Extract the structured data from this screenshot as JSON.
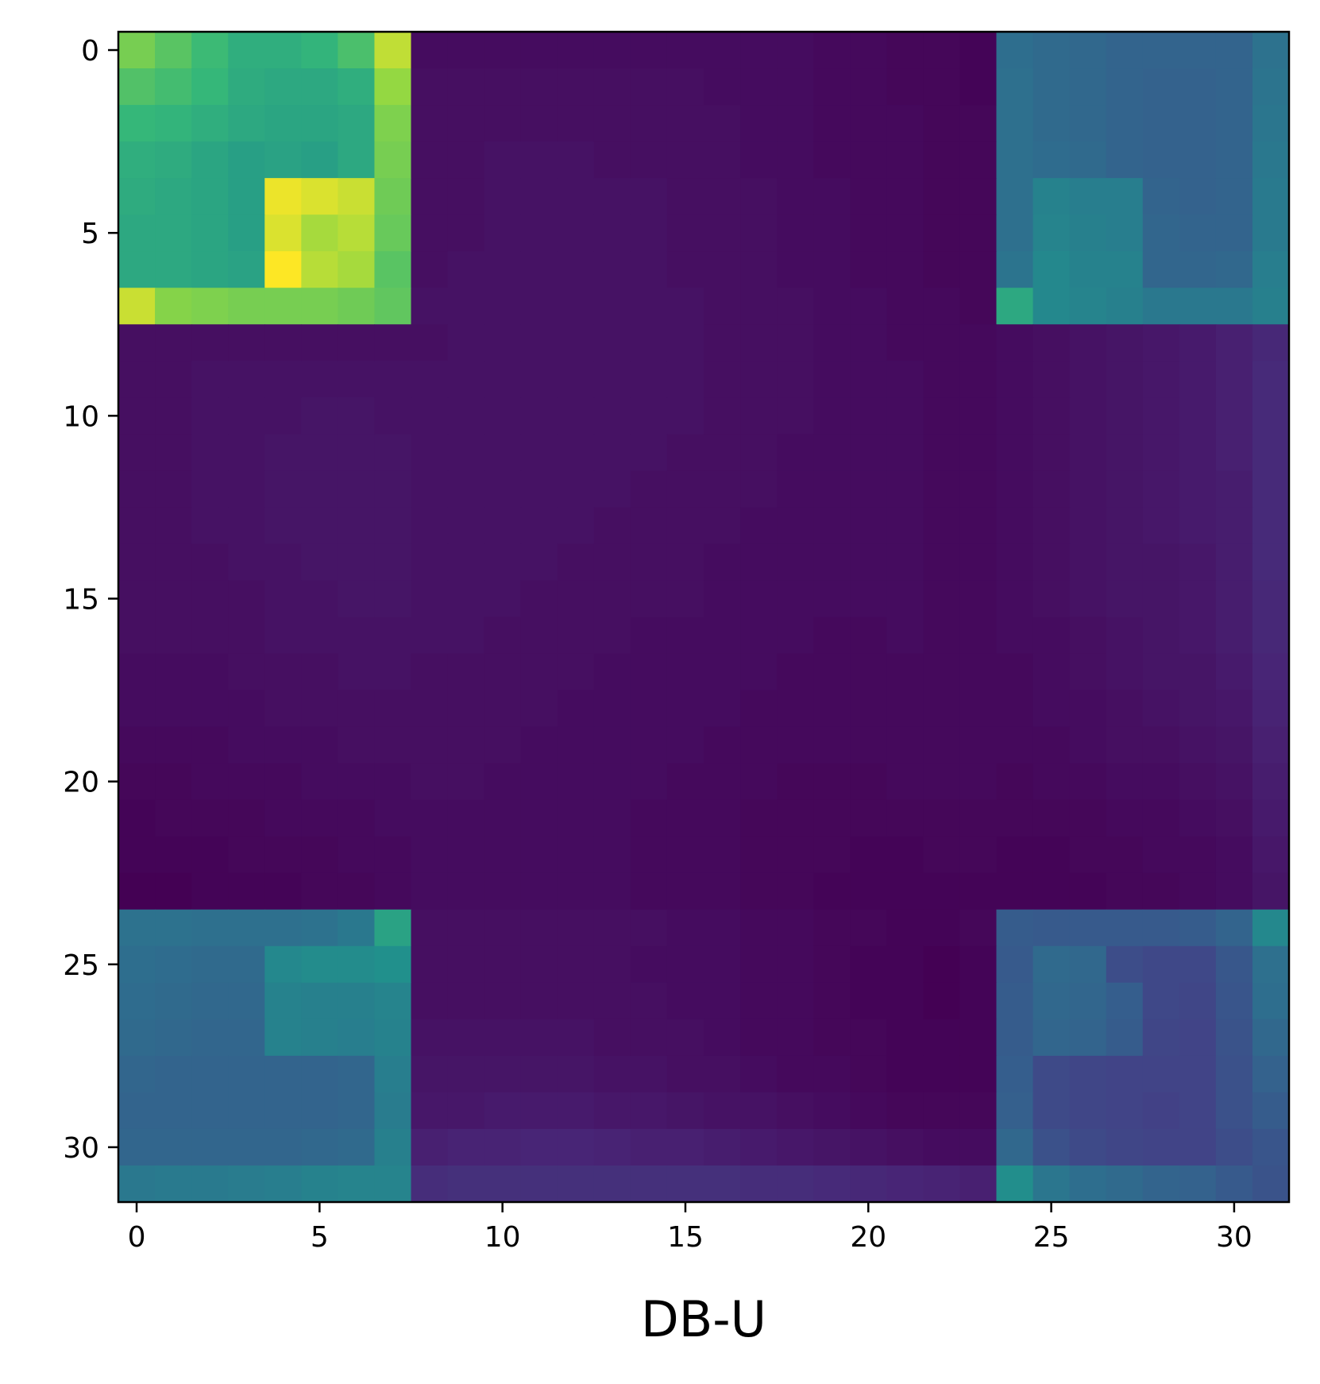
{
  "chart_data": {
    "type": "heatmap",
    "title": "",
    "xlabel": "DB-U",
    "ylabel": "",
    "colormap": "viridis",
    "value_range": [
      0,
      1
    ],
    "xlim": [
      -0.5,
      31.5
    ],
    "ylim": [
      31.5,
      -0.5
    ],
    "x_ticks": [
      0,
      5,
      10,
      15,
      20,
      25,
      30
    ],
    "y_ticks": [
      0,
      5,
      10,
      15,
      20,
      25,
      30
    ],
    "x_tick_labels": [
      "0",
      "5",
      "10",
      "15",
      "20",
      "25",
      "30"
    ],
    "y_tick_labels": [
      "0",
      "5",
      "10",
      "15",
      "20",
      "25",
      "30"
    ],
    "grid": false,
    "legend": "none",
    "rows": 32,
    "cols": 32,
    "values": [
      [
        0.84,
        0.8,
        0.76,
        0.72,
        0.72,
        0.74,
        0.78,
        0.93,
        0.04,
        0.04,
        0.04,
        0.04,
        0.04,
        0.04,
        0.04,
        0.04,
        0.04,
        0.04,
        0.04,
        0.03,
        0.03,
        0.02,
        0.02,
        0.01,
        0.45,
        0.43,
        0.42,
        0.4,
        0.4,
        0.4,
        0.4,
        0.47
      ],
      [
        0.79,
        0.77,
        0.75,
        0.71,
        0.7,
        0.7,
        0.72,
        0.88,
        0.05,
        0.05,
        0.05,
        0.05,
        0.05,
        0.05,
        0.05,
        0.05,
        0.04,
        0.04,
        0.04,
        0.03,
        0.03,
        0.02,
        0.02,
        0.01,
        0.46,
        0.43,
        0.42,
        0.4,
        0.39,
        0.39,
        0.4,
        0.48
      ],
      [
        0.75,
        0.74,
        0.72,
        0.7,
        0.69,
        0.69,
        0.7,
        0.85,
        0.05,
        0.05,
        0.05,
        0.05,
        0.05,
        0.05,
        0.05,
        0.05,
        0.05,
        0.04,
        0.04,
        0.03,
        0.03,
        0.03,
        0.02,
        0.02,
        0.46,
        0.43,
        0.42,
        0.4,
        0.39,
        0.39,
        0.4,
        0.49
      ],
      [
        0.72,
        0.71,
        0.69,
        0.67,
        0.68,
        0.67,
        0.7,
        0.84,
        0.05,
        0.05,
        0.06,
        0.06,
        0.06,
        0.05,
        0.05,
        0.05,
        0.05,
        0.04,
        0.04,
        0.03,
        0.03,
        0.03,
        0.02,
        0.02,
        0.46,
        0.44,
        0.43,
        0.4,
        0.39,
        0.39,
        0.4,
        0.5
      ],
      [
        0.71,
        0.7,
        0.69,
        0.67,
        0.98,
        0.96,
        0.94,
        0.83,
        0.05,
        0.05,
        0.06,
        0.06,
        0.06,
        0.06,
        0.06,
        0.05,
        0.05,
        0.05,
        0.04,
        0.04,
        0.03,
        0.03,
        0.02,
        0.02,
        0.46,
        0.55,
        0.53,
        0.53,
        0.4,
        0.39,
        0.4,
        0.51
      ],
      [
        0.7,
        0.7,
        0.69,
        0.67,
        0.96,
        0.9,
        0.92,
        0.82,
        0.05,
        0.05,
        0.06,
        0.06,
        0.06,
        0.06,
        0.06,
        0.05,
        0.05,
        0.05,
        0.04,
        0.04,
        0.03,
        0.03,
        0.02,
        0.02,
        0.46,
        0.56,
        0.54,
        0.53,
        0.41,
        0.4,
        0.4,
        0.51
      ],
      [
        0.7,
        0.7,
        0.69,
        0.68,
        1.0,
        0.92,
        0.9,
        0.8,
        0.05,
        0.06,
        0.06,
        0.06,
        0.06,
        0.06,
        0.06,
        0.05,
        0.05,
        0.05,
        0.04,
        0.04,
        0.03,
        0.03,
        0.02,
        0.02,
        0.48,
        0.58,
        0.55,
        0.55,
        0.41,
        0.41,
        0.42,
        0.53
      ],
      [
        0.94,
        0.86,
        0.85,
        0.84,
        0.84,
        0.84,
        0.83,
        0.81,
        0.06,
        0.06,
        0.06,
        0.06,
        0.06,
        0.06,
        0.06,
        0.06,
        0.05,
        0.05,
        0.05,
        0.04,
        0.04,
        0.03,
        0.03,
        0.02,
        0.7,
        0.58,
        0.56,
        0.54,
        0.5,
        0.5,
        0.5,
        0.54
      ],
      [
        0.05,
        0.05,
        0.05,
        0.05,
        0.05,
        0.05,
        0.05,
        0.05,
        0.05,
        0.06,
        0.06,
        0.06,
        0.06,
        0.06,
        0.06,
        0.06,
        0.05,
        0.05,
        0.05,
        0.04,
        0.04,
        0.03,
        0.03,
        0.03,
        0.04,
        0.05,
        0.06,
        0.07,
        0.08,
        0.09,
        0.11,
        0.14
      ],
      [
        0.05,
        0.05,
        0.06,
        0.06,
        0.06,
        0.06,
        0.06,
        0.06,
        0.06,
        0.06,
        0.06,
        0.06,
        0.06,
        0.06,
        0.06,
        0.06,
        0.05,
        0.05,
        0.05,
        0.04,
        0.04,
        0.04,
        0.03,
        0.03,
        0.04,
        0.05,
        0.06,
        0.07,
        0.08,
        0.09,
        0.11,
        0.15
      ],
      [
        0.05,
        0.05,
        0.06,
        0.06,
        0.06,
        0.07,
        0.07,
        0.06,
        0.06,
        0.06,
        0.06,
        0.06,
        0.06,
        0.06,
        0.06,
        0.06,
        0.05,
        0.05,
        0.05,
        0.04,
        0.04,
        0.04,
        0.03,
        0.03,
        0.04,
        0.05,
        0.06,
        0.07,
        0.08,
        0.09,
        0.11,
        0.15
      ],
      [
        0.05,
        0.05,
        0.06,
        0.06,
        0.07,
        0.07,
        0.07,
        0.07,
        0.06,
        0.06,
        0.06,
        0.06,
        0.06,
        0.06,
        0.06,
        0.05,
        0.05,
        0.05,
        0.04,
        0.04,
        0.04,
        0.04,
        0.03,
        0.03,
        0.04,
        0.05,
        0.06,
        0.07,
        0.08,
        0.09,
        0.11,
        0.15
      ],
      [
        0.05,
        0.05,
        0.06,
        0.06,
        0.07,
        0.07,
        0.07,
        0.07,
        0.06,
        0.06,
        0.06,
        0.06,
        0.06,
        0.06,
        0.05,
        0.05,
        0.05,
        0.05,
        0.04,
        0.04,
        0.04,
        0.04,
        0.03,
        0.03,
        0.04,
        0.05,
        0.06,
        0.07,
        0.08,
        0.09,
        0.1,
        0.15
      ],
      [
        0.05,
        0.05,
        0.06,
        0.06,
        0.07,
        0.07,
        0.07,
        0.07,
        0.06,
        0.06,
        0.06,
        0.06,
        0.06,
        0.05,
        0.05,
        0.05,
        0.05,
        0.04,
        0.04,
        0.04,
        0.04,
        0.04,
        0.03,
        0.03,
        0.04,
        0.05,
        0.06,
        0.07,
        0.08,
        0.09,
        0.1,
        0.15
      ],
      [
        0.05,
        0.05,
        0.05,
        0.06,
        0.06,
        0.07,
        0.07,
        0.07,
        0.06,
        0.06,
        0.06,
        0.06,
        0.05,
        0.05,
        0.05,
        0.05,
        0.04,
        0.04,
        0.04,
        0.04,
        0.04,
        0.04,
        0.03,
        0.03,
        0.04,
        0.05,
        0.06,
        0.07,
        0.07,
        0.08,
        0.1,
        0.15
      ],
      [
        0.05,
        0.05,
        0.05,
        0.05,
        0.06,
        0.06,
        0.07,
        0.07,
        0.06,
        0.06,
        0.06,
        0.05,
        0.05,
        0.05,
        0.05,
        0.05,
        0.04,
        0.04,
        0.04,
        0.04,
        0.04,
        0.04,
        0.03,
        0.03,
        0.04,
        0.05,
        0.06,
        0.07,
        0.07,
        0.08,
        0.1,
        0.14
      ],
      [
        0.05,
        0.05,
        0.05,
        0.05,
        0.06,
        0.06,
        0.06,
        0.06,
        0.06,
        0.06,
        0.05,
        0.05,
        0.05,
        0.05,
        0.04,
        0.04,
        0.04,
        0.04,
        0.04,
        0.03,
        0.03,
        0.04,
        0.03,
        0.03,
        0.04,
        0.04,
        0.05,
        0.06,
        0.07,
        0.08,
        0.1,
        0.14
      ],
      [
        0.04,
        0.04,
        0.04,
        0.05,
        0.05,
        0.05,
        0.06,
        0.06,
        0.05,
        0.05,
        0.05,
        0.05,
        0.05,
        0.04,
        0.04,
        0.04,
        0.04,
        0.04,
        0.03,
        0.03,
        0.03,
        0.03,
        0.03,
        0.03,
        0.03,
        0.04,
        0.05,
        0.06,
        0.07,
        0.07,
        0.09,
        0.13
      ],
      [
        0.04,
        0.04,
        0.04,
        0.04,
        0.05,
        0.05,
        0.05,
        0.05,
        0.05,
        0.05,
        0.05,
        0.05,
        0.04,
        0.04,
        0.04,
        0.04,
        0.04,
        0.03,
        0.03,
        0.03,
        0.03,
        0.03,
        0.03,
        0.03,
        0.03,
        0.04,
        0.04,
        0.05,
        0.06,
        0.07,
        0.08,
        0.12
      ],
      [
        0.03,
        0.03,
        0.03,
        0.04,
        0.04,
        0.04,
        0.05,
        0.05,
        0.05,
        0.05,
        0.05,
        0.04,
        0.04,
        0.04,
        0.04,
        0.04,
        0.03,
        0.03,
        0.03,
        0.03,
        0.03,
        0.03,
        0.03,
        0.03,
        0.03,
        0.03,
        0.04,
        0.05,
        0.05,
        0.06,
        0.07,
        0.11
      ],
      [
        0.02,
        0.02,
        0.03,
        0.03,
        0.03,
        0.04,
        0.04,
        0.04,
        0.05,
        0.05,
        0.04,
        0.04,
        0.04,
        0.04,
        0.04,
        0.03,
        0.03,
        0.03,
        0.02,
        0.02,
        0.02,
        0.03,
        0.03,
        0.03,
        0.02,
        0.03,
        0.03,
        0.04,
        0.04,
        0.05,
        0.06,
        0.1
      ],
      [
        0.01,
        0.02,
        0.02,
        0.02,
        0.03,
        0.03,
        0.03,
        0.04,
        0.04,
        0.04,
        0.04,
        0.04,
        0.04,
        0.04,
        0.03,
        0.03,
        0.03,
        0.02,
        0.02,
        0.02,
        0.02,
        0.02,
        0.02,
        0.02,
        0.02,
        0.02,
        0.02,
        0.03,
        0.03,
        0.04,
        0.05,
        0.09
      ],
      [
        0.01,
        0.01,
        0.01,
        0.02,
        0.02,
        0.02,
        0.03,
        0.03,
        0.04,
        0.04,
        0.04,
        0.04,
        0.04,
        0.04,
        0.03,
        0.03,
        0.03,
        0.02,
        0.02,
        0.02,
        0.01,
        0.01,
        0.02,
        0.02,
        0.01,
        0.01,
        0.02,
        0.02,
        0.03,
        0.03,
        0.04,
        0.08
      ],
      [
        0.0,
        0.0,
        0.01,
        0.01,
        0.01,
        0.02,
        0.02,
        0.03,
        0.04,
        0.04,
        0.04,
        0.04,
        0.04,
        0.04,
        0.03,
        0.03,
        0.03,
        0.02,
        0.02,
        0.01,
        0.01,
        0.01,
        0.01,
        0.01,
        0.01,
        0.01,
        0.01,
        0.02,
        0.02,
        0.03,
        0.04,
        0.07
      ],
      [
        0.47,
        0.47,
        0.46,
        0.46,
        0.46,
        0.47,
        0.5,
        0.68,
        0.05,
        0.05,
        0.05,
        0.05,
        0.05,
        0.05,
        0.05,
        0.04,
        0.04,
        0.03,
        0.03,
        0.02,
        0.02,
        0.01,
        0.01,
        0.02,
        0.36,
        0.35,
        0.35,
        0.35,
        0.35,
        0.36,
        0.4,
        0.58
      ],
      [
        0.45,
        0.44,
        0.43,
        0.43,
        0.58,
        0.6,
        0.6,
        0.62,
        0.05,
        0.05,
        0.05,
        0.05,
        0.05,
        0.05,
        0.04,
        0.04,
        0.04,
        0.03,
        0.03,
        0.02,
        0.01,
        0.01,
        0.0,
        0.01,
        0.35,
        0.43,
        0.42,
        0.29,
        0.27,
        0.27,
        0.34,
        0.46
      ],
      [
        0.44,
        0.43,
        0.42,
        0.42,
        0.55,
        0.54,
        0.54,
        0.56,
        0.05,
        0.05,
        0.05,
        0.05,
        0.05,
        0.05,
        0.05,
        0.04,
        0.04,
        0.03,
        0.03,
        0.02,
        0.01,
        0.01,
        0.0,
        0.01,
        0.36,
        0.42,
        0.41,
        0.37,
        0.27,
        0.26,
        0.33,
        0.45
      ],
      [
        0.43,
        0.42,
        0.41,
        0.41,
        0.55,
        0.54,
        0.53,
        0.55,
        0.06,
        0.06,
        0.06,
        0.06,
        0.06,
        0.05,
        0.05,
        0.05,
        0.04,
        0.03,
        0.03,
        0.02,
        0.02,
        0.01,
        0.01,
        0.01,
        0.36,
        0.41,
        0.4,
        0.36,
        0.26,
        0.25,
        0.32,
        0.42
      ],
      [
        0.41,
        0.4,
        0.4,
        0.4,
        0.4,
        0.4,
        0.41,
        0.53,
        0.07,
        0.07,
        0.07,
        0.07,
        0.07,
        0.06,
        0.06,
        0.05,
        0.05,
        0.04,
        0.03,
        0.03,
        0.02,
        0.01,
        0.01,
        0.01,
        0.37,
        0.28,
        0.26,
        0.25,
        0.25,
        0.25,
        0.31,
        0.39
      ],
      [
        0.4,
        0.4,
        0.4,
        0.4,
        0.4,
        0.4,
        0.41,
        0.52,
        0.08,
        0.08,
        0.09,
        0.09,
        0.09,
        0.08,
        0.08,
        0.07,
        0.06,
        0.06,
        0.05,
        0.04,
        0.03,
        0.02,
        0.02,
        0.02,
        0.38,
        0.28,
        0.26,
        0.25,
        0.24,
        0.25,
        0.31,
        0.36
      ],
      [
        0.41,
        0.41,
        0.41,
        0.41,
        0.41,
        0.42,
        0.43,
        0.54,
        0.11,
        0.12,
        0.12,
        0.13,
        0.13,
        0.12,
        0.11,
        0.11,
        0.1,
        0.09,
        0.08,
        0.07,
        0.06,
        0.05,
        0.04,
        0.04,
        0.42,
        0.31,
        0.28,
        0.26,
        0.25,
        0.25,
        0.29,
        0.33
      ],
      [
        0.5,
        0.51,
        0.51,
        0.52,
        0.53,
        0.55,
        0.56,
        0.56,
        0.16,
        0.17,
        0.17,
        0.17,
        0.17,
        0.17,
        0.17,
        0.17,
        0.17,
        0.16,
        0.16,
        0.15,
        0.14,
        0.13,
        0.12,
        0.11,
        0.61,
        0.49,
        0.45,
        0.43,
        0.4,
        0.39,
        0.35,
        0.32
      ]
    ]
  }
}
